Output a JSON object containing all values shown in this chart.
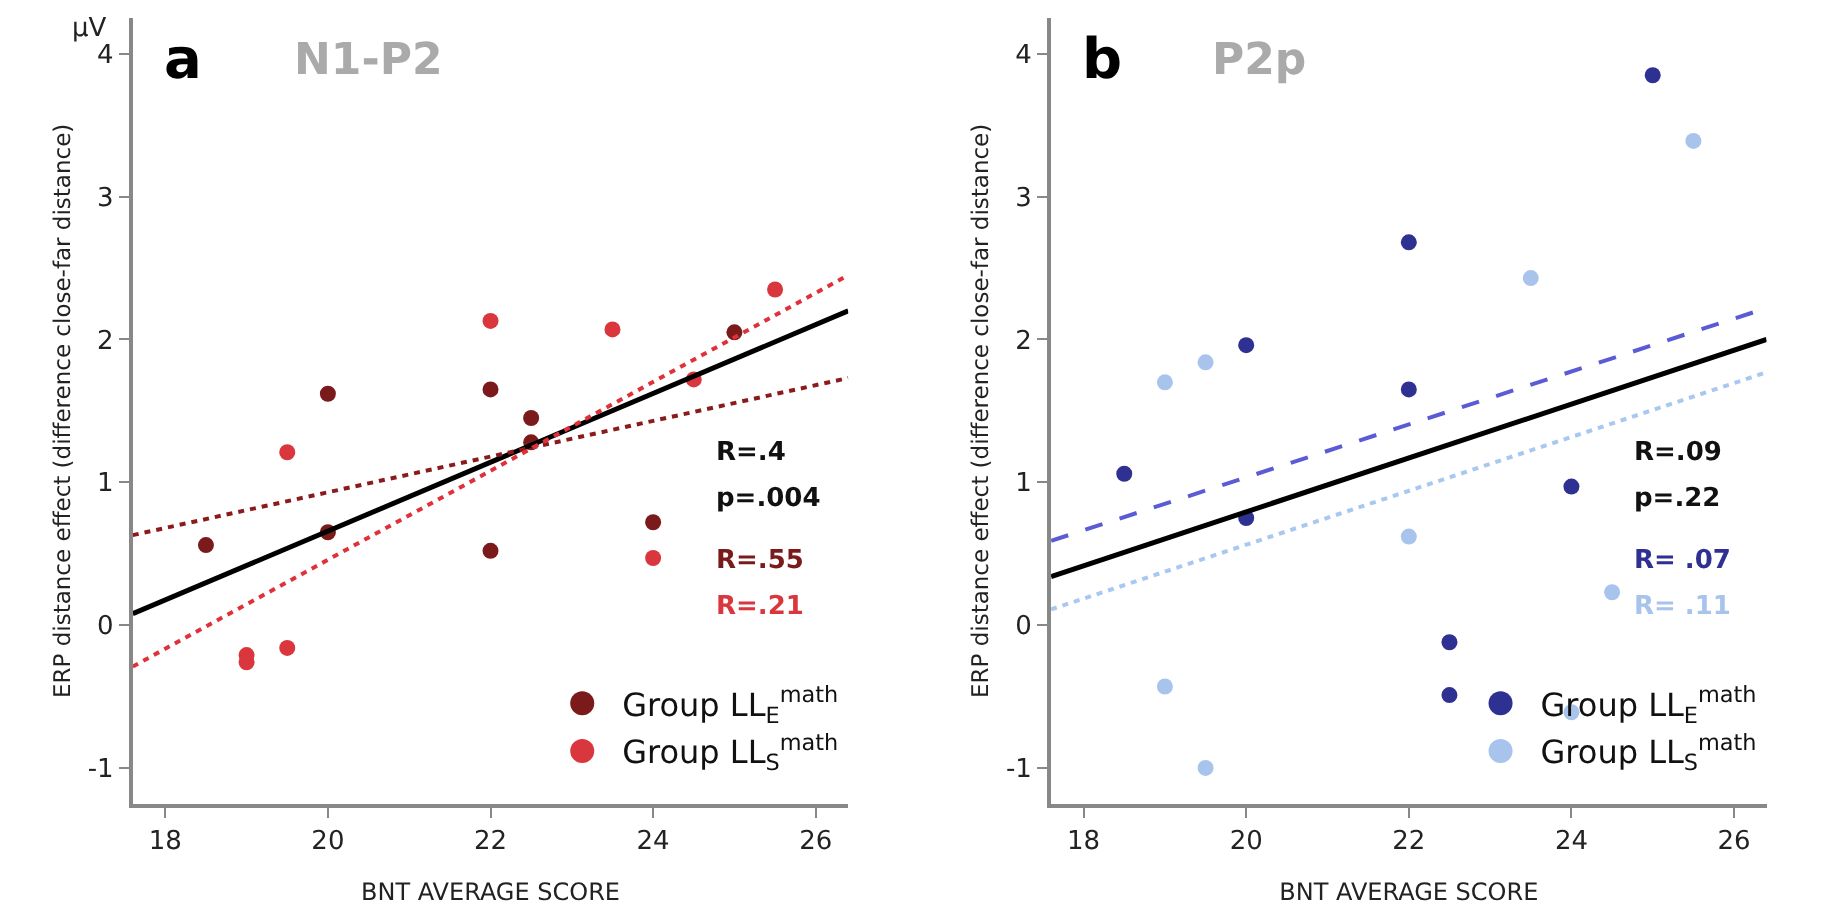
{
  "chart_data": [
    {
      "type": "scatter",
      "title": "a",
      "subtitle": "N1-P2",
      "xlabel": "BNT AVERAGE SCORE",
      "ylabel": "ERP distance effect (difference close-far distance)",
      "annotations": [
        "µV",
        "R=.4",
        "p=.004",
        "R=.55",
        "R=.21"
      ],
      "series": [
        {
          "name": "Group LL$_{E}$$^{math}$",
          "color": "#7a1a1a",
          "marker": "circle",
          "x": [
            18.5,
            20,
            20,
            22,
            22,
            22.5,
            22.5,
            24,
            25
          ],
          "values": [
            0.56,
            1.62,
            0.65,
            1.65,
            0.52,
            1.45,
            1.28,
            0.72,
            2.05
          ]
        },
        {
          "name": "Group LL$_{S}$$^{math}$",
          "color": "#d9363e",
          "marker": "circle",
          "x": [
            19,
            19,
            19.5,
            19.5,
            22,
            23.5,
            24,
            24.5,
            25.5
          ],
          "values": [
            -0.21,
            -0.26,
            -0.16,
            1.21,
            2.13,
            2.07,
            0.47,
            1.72,
            2.35
          ]
        },
        {
          "type": "line",
          "color": "#000000",
          "line_style": "solid",
          "x": [
            17.6,
            26.4
          ],
          "values": [
            0.08,
            2.2
          ]
        },
        {
          "type": "line",
          "color": "#8b1a1a",
          "line_style": "dotted",
          "x": [
            17.6,
            26.4
          ],
          "values": [
            0.63,
            1.73
          ]
        },
        {
          "type": "line",
          "color": "#e0303a",
          "line_style": "dotted",
          "x": [
            17.6,
            26.4
          ],
          "values": [
            -0.29,
            2.45
          ]
        }
      ],
      "xlim": [
        17.6,
        26.4
      ],
      "xticks": [
        18,
        20,
        22,
        24,
        26
      ],
      "ylim": [
        -1.25,
        4.25
      ],
      "yticks": [
        -1,
        0,
        1,
        2,
        3,
        4
      ],
      "legend": "bottom right"
    },
    {
      "type": "scatter",
      "title": "b",
      "subtitle": "P2p",
      "xlabel": "BNT AVERAGE SCORE",
      "ylabel": "ERP distance effect (difference close-far distance)",
      "annotations": [
        "R=.09",
        "p=.22",
        "R= .07",
        "R= .11"
      ],
      "series": [
        {
          "name": "Group LL$_{E}$$^{math}$",
          "color": "#2e3192",
          "marker": "circle",
          "x": [
            18.5,
            20,
            20,
            22,
            22,
            22.5,
            22.5,
            24,
            25
          ],
          "values": [
            1.06,
            1.96,
            0.75,
            2.68,
            1.65,
            -0.12,
            -0.49,
            0.97,
            3.85
          ]
        },
        {
          "name": "Group LL$_{S}$$^{math}$",
          "color": "#a8c4ec",
          "marker": "circle",
          "x": [
            19,
            19,
            19.5,
            19.5,
            22,
            23.5,
            24,
            24.5,
            25.5
          ],
          "values": [
            1.7,
            -0.43,
            1.84,
            -1.0,
            0.62,
            2.43,
            -0.61,
            0.23,
            3.39
          ]
        },
        {
          "type": "line",
          "color": "#000000",
          "line_style": "solid",
          "x": [
            17.6,
            26.4
          ],
          "values": [
            0.34,
            2.0
          ]
        },
        {
          "type": "line",
          "color": "#5b5bd6",
          "line_style": "dashed",
          "x": [
            17.6,
            26.4
          ],
          "values": [
            0.59,
            2.22
          ]
        },
        {
          "type": "line",
          "color": "#a8c8f0",
          "line_style": "dotted",
          "x": [
            17.6,
            26.4
          ],
          "values": [
            0.11,
            1.77
          ]
        }
      ],
      "xlim": [
        17.6,
        26.4
      ],
      "xticks": [
        18,
        20,
        22,
        24,
        26
      ],
      "ylim": [
        -1.25,
        4.25
      ],
      "yticks": [
        -1,
        0,
        1,
        2,
        3,
        4
      ],
      "legend": "bottom right"
    }
  ]
}
